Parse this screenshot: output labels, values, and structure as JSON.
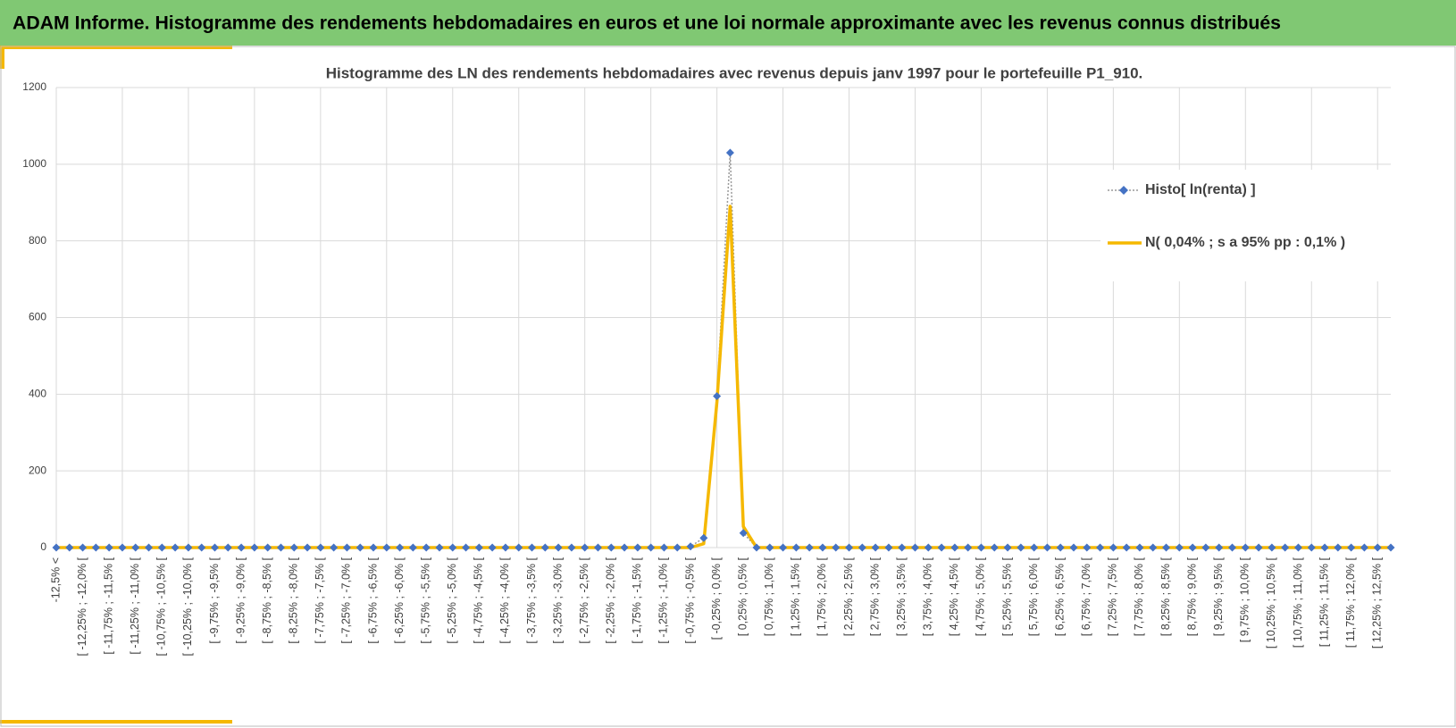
{
  "header": {
    "title": "ADAM Informe. Histogramme des rendements hebdomadaires en euros et une loi normale approximante avec les revenus connus distribués"
  },
  "chart_data": {
    "type": "line",
    "title": "Histogramme des LN des rendements hebdomadaires avec revenus depuis janv 1997 pour le portefeuille P1_910.",
    "categories": [
      "-12,5% <",
      null,
      "[ -12,25% ; -12,0% [",
      null,
      "[ -11,75% ; -11,5% [",
      null,
      "[ -11,25% ; -11,0% [",
      null,
      "[ -10,75% ; -10,5% [",
      null,
      "[ -10,25% ; -10,0% [",
      null,
      "[ -9,75% ; -9,5% [",
      null,
      "[ -9,25% ; -9,0% [",
      null,
      "[ -8,75% ; -8,5% [",
      null,
      "[ -8,25% ; -8,0% [",
      null,
      "[ -7,75% ; -7,5% [",
      null,
      "[ -7,25% ; -7,0% [",
      null,
      "[ -6,75% ; -6,5% [",
      null,
      "[ -6,25% ; -6,0% [",
      null,
      "[ -5,75% ; -5,5% [",
      null,
      "[ -5,25% ; -5,0% [",
      null,
      "[ -4,75% ; -4,5% [",
      null,
      "[ -4,25% ; -4,0% [",
      null,
      "[ -3,75% ; -3,5% [",
      null,
      "[ -3,25% ; -3,0% [",
      null,
      "[ -2,75% ; -2,5% [",
      null,
      "[ -2,25% ; -2,0% [",
      null,
      "[ -1,75% ; -1,5% [",
      null,
      "[ -1,25% ; -1,0% [",
      null,
      "[ -0,75% ; -0,5% [",
      null,
      "[ -0,25% ; 0,0% [",
      null,
      "[ 0,25% ; 0,5% [",
      null,
      "[ 0,75% ; 1,0% [",
      null,
      "[ 1,25% ; 1,5% [",
      null,
      "[ 1,75% ; 2,0% [",
      null,
      "[ 2,25% ; 2,5% [",
      null,
      "[ 2,75% ; 3,0% [",
      null,
      "[ 3,25% ; 3,5% [",
      null,
      "[ 3,75% ; 4,0% [",
      null,
      "[ 4,25% ; 4,5% [",
      null,
      "[ 4,75% ; 5,0% [",
      null,
      "[ 5,25% ; 5,5% [",
      null,
      "[ 5,75% ; 6,0% [",
      null,
      "[ 6,25% ; 6,5% [",
      null,
      "[ 6,75% ; 7,0% [",
      null,
      "[ 7,25% ; 7,5% [",
      null,
      "[ 7,75% ; 8,0% [",
      null,
      "[ 8,25% ; 8,5% [",
      null,
      "[ 8,75% ; 9,0% [",
      null,
      "[ 9,25% ; 9,5% [",
      null,
      "[ 9,75% ; 10,0% [",
      null,
      "[ 10,25% ; 10,5% [",
      null,
      "[ 10,75% ; 11,0% [",
      null,
      "[ 11,25% ; 11,5% [",
      null,
      "[ 11,75% ; 12,0% [",
      null,
      "[ 12,25% ; 12,5% [",
      null
    ],
    "series": [
      {
        "name": "Histo[ ln(renta) ]",
        "color": "#4472c4",
        "values": [
          0,
          0,
          0,
          0,
          0,
          0,
          0,
          0,
          0,
          0,
          0,
          0,
          0,
          0,
          0,
          0,
          0,
          0,
          0,
          0,
          0,
          0,
          0,
          0,
          0,
          0,
          0,
          0,
          0,
          0,
          0,
          0,
          0,
          0,
          0,
          0,
          0,
          0,
          0,
          0,
          0,
          0,
          0,
          0,
          0,
          0,
          0,
          0,
          3,
          25,
          395,
          1030,
          38,
          0,
          0,
          0,
          0,
          0,
          0,
          0,
          0,
          0,
          0,
          0,
          0,
          0,
          0,
          0,
          0,
          0,
          0,
          0,
          0,
          0,
          0,
          0,
          0,
          0,
          0,
          0,
          0,
          0,
          0,
          0,
          0,
          0,
          0,
          0,
          0,
          0,
          0,
          0,
          0,
          0,
          0,
          0,
          0,
          0,
          0,
          0,
          0,
          0
        ]
      },
      {
        "name": "N( 0,04% ; s a 95% pp : 0,1% )",
        "color": "#f5b800",
        "values": [
          0,
          0,
          0,
          0,
          0,
          0,
          0,
          0,
          0,
          0,
          0,
          0,
          0,
          0,
          0,
          0,
          0,
          0,
          0,
          0,
          0,
          0,
          0,
          0,
          0,
          0,
          0,
          0,
          0,
          0,
          0,
          0,
          0,
          0,
          0,
          0,
          0,
          0,
          0,
          0,
          0,
          0,
          0,
          0,
          0,
          0,
          0,
          0,
          0,
          10,
          380,
          890,
          55,
          0,
          0,
          0,
          0,
          0,
          0,
          0,
          0,
          0,
          0,
          0,
          0,
          0,
          0,
          0,
          0,
          0,
          0,
          0,
          0,
          0,
          0,
          0,
          0,
          0,
          0,
          0,
          0,
          0,
          0,
          0,
          0,
          0,
          0,
          0,
          0,
          0,
          0,
          0,
          0,
          0,
          0,
          0,
          0,
          0,
          0,
          0,
          0,
          0
        ]
      }
    ],
    "ylim": [
      0,
      1200
    ],
    "yticks": [
      0,
      200,
      400,
      600,
      800,
      1000,
      1200
    ],
    "grid": true,
    "legend": "right"
  }
}
